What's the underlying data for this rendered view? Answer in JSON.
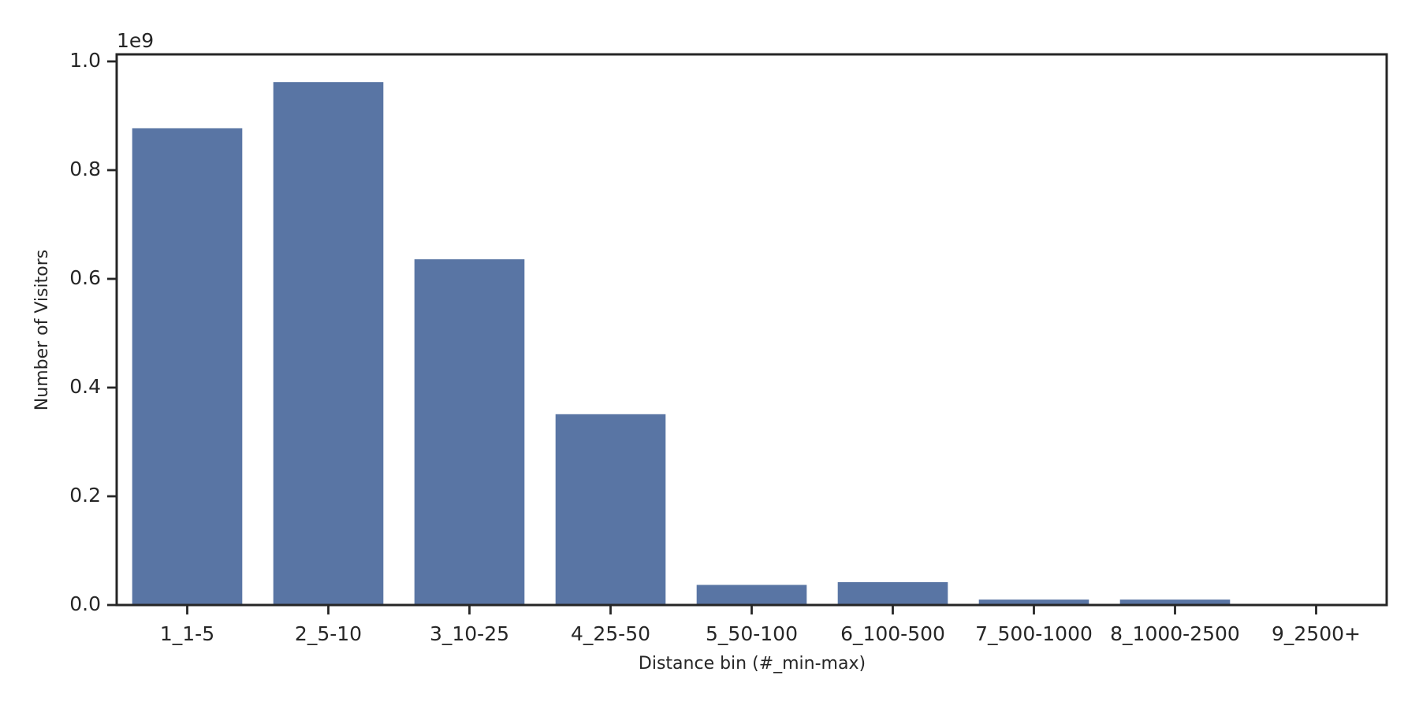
{
  "chart_data": {
    "type": "bar",
    "x_label": "Distance bin (#_min-max)",
    "y_label": "Number of Visitors",
    "y_offset_label": "1e9",
    "categories": [
      "1_1-5",
      "2_5-10",
      "3_10-25",
      "4_25-50",
      "5_50-100",
      "6_100-500",
      "7_500-1000",
      "8_1000-2500",
      "9_2500+"
    ],
    "values": [
      0.877,
      0.962,
      0.636,
      0.351,
      0.037,
      0.042,
      0.01,
      0.01,
      0.001
    ],
    "color": "#5975a4",
    "ylim": [
      0,
      1.013
    ],
    "yticks": [
      {
        "value": 0,
        "label": "0.0"
      },
      {
        "value": 0.2,
        "label": "0.2"
      },
      {
        "value": 0.4,
        "label": "0.4"
      },
      {
        "value": 0.6,
        "label": "0.6"
      },
      {
        "value": 0.8,
        "label": "0.8"
      },
      {
        "value": 1,
        "label": "1.0"
      }
    ],
    "grid": false
  }
}
